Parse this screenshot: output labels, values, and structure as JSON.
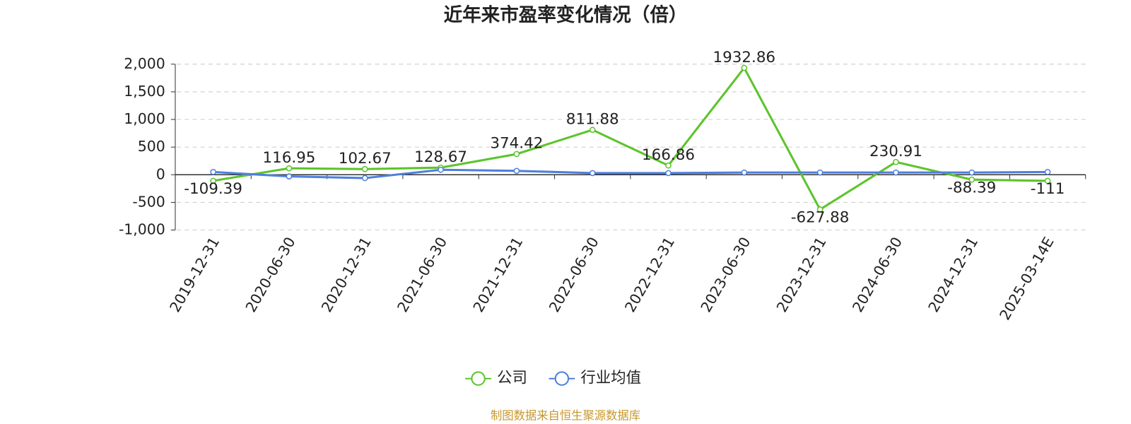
{
  "chart_data": {
    "type": "line",
    "title": "近年来市盈率变化情况（倍）",
    "categories": [
      "2019-12-31",
      "2020-06-30",
      "2020-12-31",
      "2021-06-30",
      "2021-12-31",
      "2022-06-30",
      "2022-12-31",
      "2023-06-30",
      "2023-12-31",
      "2024-06-30",
      "2024-12-31",
      "2025-03-14E"
    ],
    "series": [
      {
        "name": "公司",
        "color": "#5cc42c",
        "values": [
          -109.39,
          116.95,
          102.67,
          128.67,
          374.42,
          811.88,
          166.86,
          1932.86,
          -627.88,
          230.91,
          -88.39,
          -111
        ],
        "data_labels": true
      },
      {
        "name": "行业均值",
        "color": "#4f7fdc",
        "values": [
          50,
          -30,
          -60,
          90,
          70,
          30,
          30,
          40,
          40,
          40,
          40,
          50
        ],
        "data_labels": false
      }
    ],
    "ylim": [
      -1000,
      2000
    ],
    "yticks": [
      {
        "value": -1000,
        "label": "-1,000"
      },
      -500,
      0,
      500,
      {
        "value": 1000,
        "label": "1,000"
      },
      {
        "value": 1500,
        "label": "1,500"
      },
      {
        "value": 2000,
        "label": "2,000"
      }
    ],
    "grid": true,
    "legend": "bottom",
    "source": "制图数据来自恒生聚源数据库"
  }
}
